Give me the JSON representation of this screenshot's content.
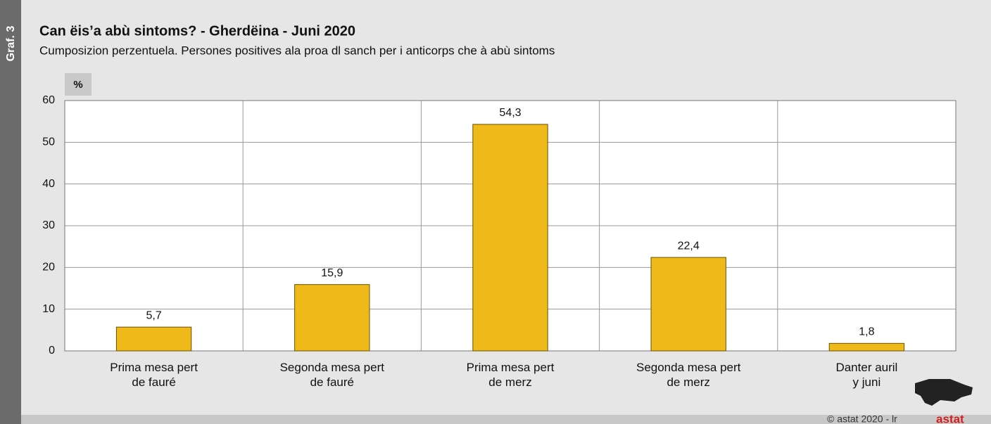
{
  "graph_label": "Graf. 3",
  "copyright": "© astat 2020 - lr",
  "logo": "astat",
  "chart_data": {
    "type": "bar",
    "title": "Can ëis’a abù sintoms? - Gherdëina - Juni 2020",
    "subtitle": "Cumposizion perzentuela. Persones positives ala proa dl sanch per i anticorps che à abù sintoms",
    "y_label": "%",
    "categories": [
      "Prima mesa pert\nde fauré",
      "Segonda mesa pert\nde fauré",
      "Prima mesa pert\nde merz",
      "Segonda mesa pert\nde merz",
      "Danter auril\ny juni"
    ],
    "values": [
      5.7,
      15.9,
      54.3,
      22.4,
      1.8
    ],
    "value_labels": [
      "5,7",
      "15,9",
      "54,3",
      "22,4",
      "1,8"
    ],
    "color": "#f0b91a",
    "ylim": [
      0,
      60
    ],
    "yticks": [
      0,
      10,
      20,
      30,
      40,
      50,
      60
    ],
    "grid": true
  }
}
